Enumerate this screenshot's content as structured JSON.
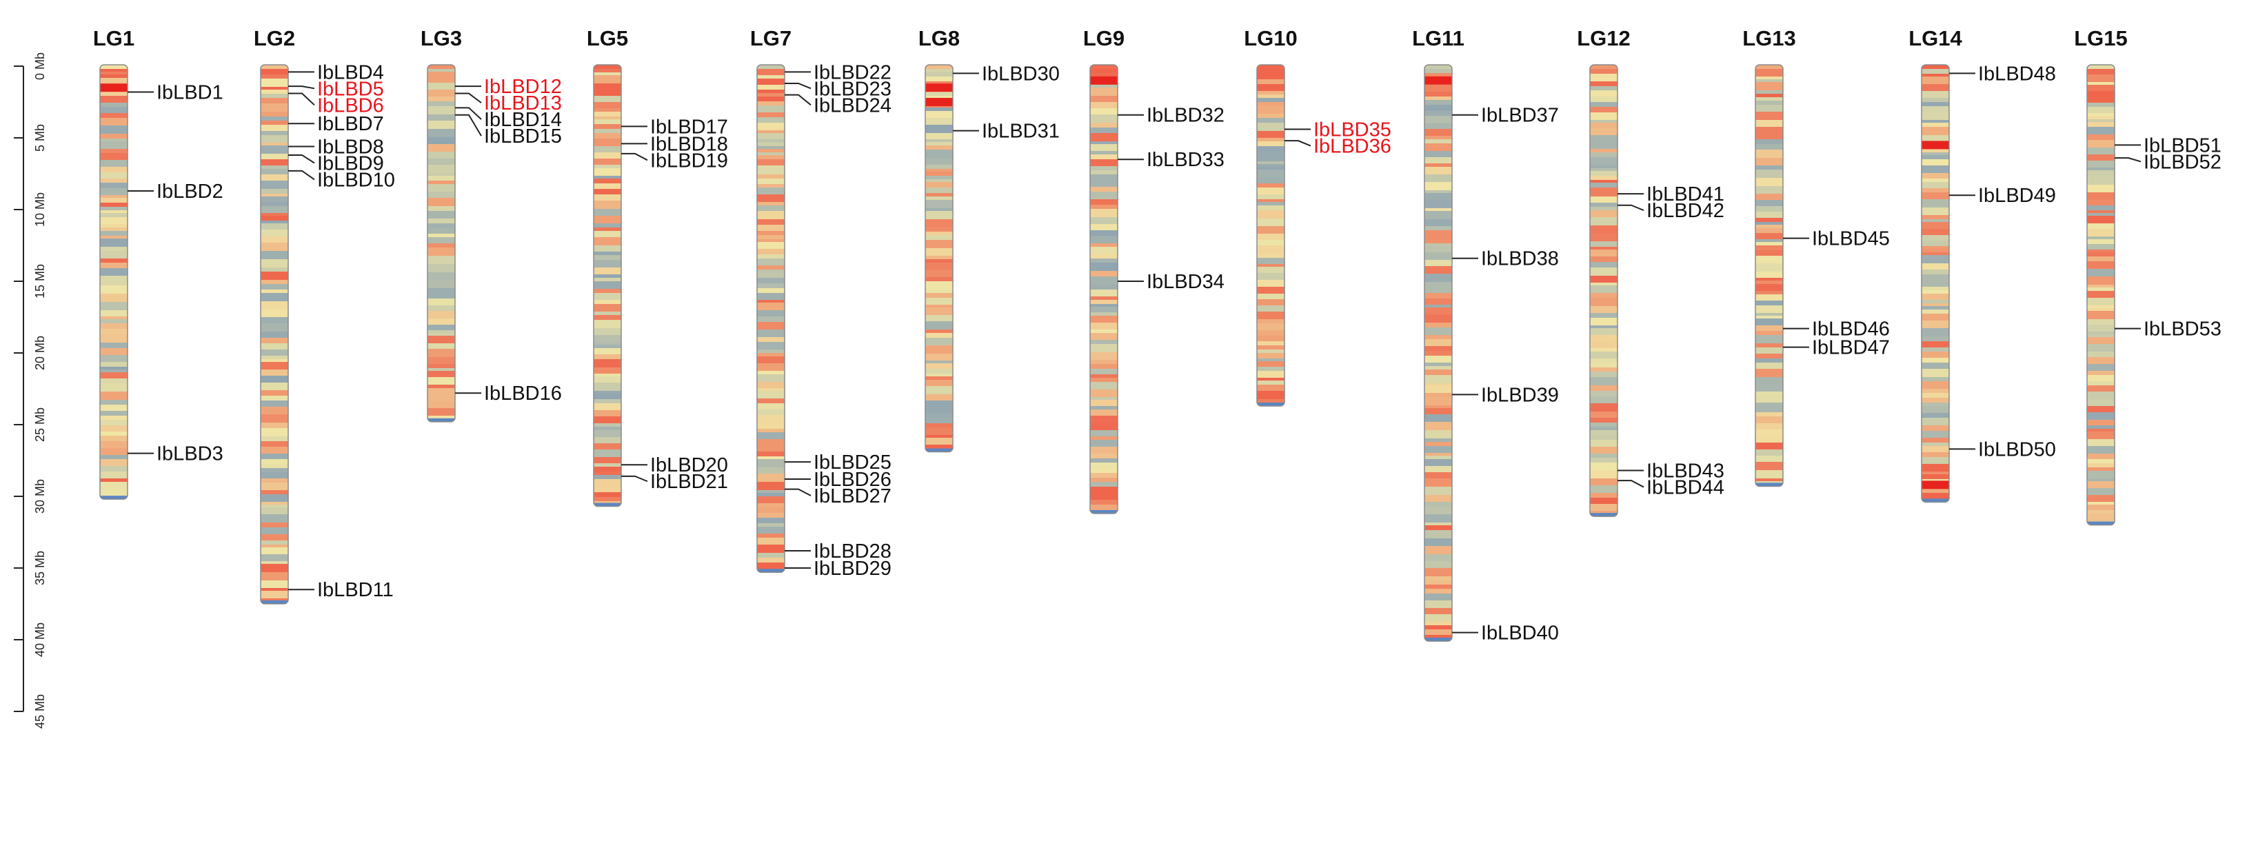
{
  "figure": {
    "title": "",
    "scale": {
      "unit": "Mb",
      "max": 45,
      "ticks": [
        {
          "value": 0,
          "label": "0 Mb"
        },
        {
          "value": 5,
          "label": "5 Mb"
        },
        {
          "value": 10,
          "label": "10 Mb"
        },
        {
          "value": 15,
          "label": "15 Mb"
        },
        {
          "value": 20,
          "label": "20 Mb"
        },
        {
          "value": 25,
          "label": "25 Mb"
        },
        {
          "value": 30,
          "label": "30 Mb"
        },
        {
          "value": 35,
          "label": "35 Mb"
        },
        {
          "value": 40,
          "label": "40 Mb"
        },
        {
          "value": 45,
          "label": "45 Mb"
        }
      ]
    },
    "highlight_color": "#e8141a",
    "heat_colors": {
      "low": "#6f8fb5",
      "mid": "#f1e6a6",
      "high": "#ee3b2f"
    },
    "chromosomes": [
      {
        "name": "LG1",
        "length_mb": 30.2,
        "seed": 11,
        "hot_mb": [
          1.5
        ],
        "genes": [
          {
            "name": "IbLBD1",
            "pos_mb": 1.8
          },
          {
            "name": "IbLBD2",
            "pos_mb": 8.7
          },
          {
            "name": "IbLBD3",
            "pos_mb": 27.0
          }
        ]
      },
      {
        "name": "LG2",
        "length_mb": 37.5,
        "seed": 23,
        "hot_mb": [],
        "genes": [
          {
            "name": "IbLBD4",
            "pos_mb": 0.4
          },
          {
            "name": "IbLBD5",
            "pos_mb": 1.4,
            "highlight": true
          },
          {
            "name": "IbLBD6",
            "pos_mb": 1.9,
            "highlight": true
          },
          {
            "name": "IbLBD7",
            "pos_mb": 4.0
          },
          {
            "name": "IbLBD8",
            "pos_mb": 5.6
          },
          {
            "name": "IbLBD9",
            "pos_mb": 6.2
          },
          {
            "name": "IbLBD10",
            "pos_mb": 7.3
          },
          {
            "name": "IbLBD11",
            "pos_mb": 36.5
          }
        ]
      },
      {
        "name": "LG3",
        "length_mb": 24.8,
        "seed": 37,
        "hot_mb": [],
        "genes": [
          {
            "name": "IbLBD12",
            "pos_mb": 1.4,
            "highlight": true
          },
          {
            "name": "IbLBD13",
            "pos_mb": 1.9,
            "highlight": true
          },
          {
            "name": "IbLBD14",
            "pos_mb": 2.9
          },
          {
            "name": "IbLBD15",
            "pos_mb": 3.4
          },
          {
            "name": "IbLBD16",
            "pos_mb": 22.8
          }
        ]
      },
      {
        "name": "LG5",
        "length_mb": 30.7,
        "seed": 41,
        "hot_mb": [],
        "genes": [
          {
            "name": "IbLBD17",
            "pos_mb": 4.2
          },
          {
            "name": "IbLBD18",
            "pos_mb": 5.4
          },
          {
            "name": "IbLBD19",
            "pos_mb": 6.1
          },
          {
            "name": "IbLBD20",
            "pos_mb": 27.8
          },
          {
            "name": "IbLBD21",
            "pos_mb": 28.6
          }
        ]
      },
      {
        "name": "LG7",
        "length_mb": 35.3,
        "seed": 53,
        "hot_mb": [],
        "genes": [
          {
            "name": "IbLBD22",
            "pos_mb": 0.4
          },
          {
            "name": "IbLBD23",
            "pos_mb": 1.2
          },
          {
            "name": "IbLBD24",
            "pos_mb": 2.0
          },
          {
            "name": "IbLBD25",
            "pos_mb": 27.6
          },
          {
            "name": "IbLBD26",
            "pos_mb": 28.8
          },
          {
            "name": "IbLBD27",
            "pos_mb": 29.5
          },
          {
            "name": "IbLBD28",
            "pos_mb": 33.8
          },
          {
            "name": "IbLBD29",
            "pos_mb": 35.0
          }
        ]
      },
      {
        "name": "LG8",
        "length_mb": 26.9,
        "seed": 67,
        "hot_mb": [
          1.5,
          2.5
        ],
        "genes": [
          {
            "name": "IbLBD30",
            "pos_mb": 0.5
          },
          {
            "name": "IbLBD31",
            "pos_mb": 4.5
          }
        ]
      },
      {
        "name": "LG9",
        "length_mb": 31.2,
        "seed": 71,
        "hot_mb": [
          1.0
        ],
        "genes": [
          {
            "name": "IbLBD32",
            "pos_mb": 3.4
          },
          {
            "name": "IbLBD33",
            "pos_mb": 6.5
          },
          {
            "name": "IbLBD34",
            "pos_mb": 15.0
          }
        ]
      },
      {
        "name": "LG10",
        "length_mb": 23.7,
        "seed": 83,
        "hot_mb": [],
        "genes": [
          {
            "name": "IbLBD35",
            "pos_mb": 4.4,
            "highlight": true
          },
          {
            "name": "IbLBD36",
            "pos_mb": 5.2,
            "highlight": true
          }
        ]
      },
      {
        "name": "LG11",
        "length_mb": 40.1,
        "seed": 97,
        "hot_mb": [
          1.0
        ],
        "genes": [
          {
            "name": "IbLBD37",
            "pos_mb": 3.4
          },
          {
            "name": "IbLBD38",
            "pos_mb": 13.4
          },
          {
            "name": "IbLBD39",
            "pos_mb": 22.9
          },
          {
            "name": "IbLBD40",
            "pos_mb": 39.5
          }
        ]
      },
      {
        "name": "LG12",
        "length_mb": 31.4,
        "seed": 101,
        "hot_mb": [],
        "genes": [
          {
            "name": "IbLBD41",
            "pos_mb": 8.9
          },
          {
            "name": "IbLBD42",
            "pos_mb": 9.7
          },
          {
            "name": "IbLBD43",
            "pos_mb": 28.2
          },
          {
            "name": "IbLBD44",
            "pos_mb": 28.9
          }
        ]
      },
      {
        "name": "LG13",
        "length_mb": 29.3,
        "seed": 113,
        "hot_mb": [],
        "genes": [
          {
            "name": "IbLBD45",
            "pos_mb": 12.0
          },
          {
            "name": "IbLBD46",
            "pos_mb": 18.3
          },
          {
            "name": "IbLBD47",
            "pos_mb": 19.6
          }
        ]
      },
      {
        "name": "LG14",
        "length_mb": 30.4,
        "seed": 127,
        "hot_mb": [
          5.5,
          29.2
        ],
        "genes": [
          {
            "name": "IbLBD48",
            "pos_mb": 0.5
          },
          {
            "name": "IbLBD49",
            "pos_mb": 9.0
          },
          {
            "name": "IbLBD50",
            "pos_mb": 26.7
          }
        ]
      },
      {
        "name": "LG15",
        "length_mb": 32.0,
        "seed": 131,
        "hot_mb": [],
        "genes": [
          {
            "name": "IbLBD51",
            "pos_mb": 5.5
          },
          {
            "name": "IbLBD52",
            "pos_mb": 6.4
          },
          {
            "name": "IbLBD53",
            "pos_mb": 18.3
          }
        ]
      }
    ]
  }
}
